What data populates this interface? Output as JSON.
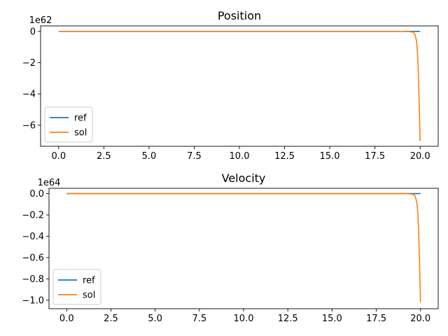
{
  "chart_data": [
    {
      "type": "line",
      "title": "Position",
      "xlabel": "",
      "ylabel": "",
      "y_offset_label": "1e62",
      "xlim": [
        -1.0,
        21.0
      ],
      "ylim": [
        -7.35,
        0.35
      ],
      "x_ticks": [
        0,
        2.5,
        5,
        7.5,
        10,
        12.5,
        15,
        17.5,
        20
      ],
      "x_tick_labels": [
        "0.0",
        "2.5",
        "5.0",
        "7.5",
        "10.0",
        "12.5",
        "15.0",
        "17.5",
        "20.0"
      ],
      "y_ticks": [
        0,
        -2,
        -4,
        -6
      ],
      "y_tick_labels": [
        "0",
        "−2",
        "−4",
        "−6"
      ],
      "grid": false,
      "legend": "lower-left",
      "series": [
        {
          "name": "ref",
          "color": "#1f77b4",
          "x": [
            0,
            20
          ],
          "y": [
            0,
            0
          ]
        },
        {
          "name": "sol",
          "color": "#ff7f0e",
          "x": [
            0,
            19.0,
            19.4,
            19.6,
            19.7,
            19.8,
            19.85,
            19.9,
            19.95,
            20.0
          ],
          "y": [
            0,
            0,
            -0.01,
            -0.05,
            -0.15,
            -0.6,
            -1.3,
            -2.6,
            -4.6,
            -7.0
          ]
        }
      ]
    },
    {
      "type": "line",
      "title": "Velocity",
      "xlabel": "",
      "ylabel": "",
      "y_offset_label": "1e64",
      "xlim": [
        -1.0,
        21.0
      ],
      "ylim": [
        -1.08,
        0.05
      ],
      "x_ticks": [
        0,
        2.5,
        5,
        7.5,
        10,
        12.5,
        15,
        17.5,
        20
      ],
      "x_tick_labels": [
        "0.0",
        "2.5",
        "5.0",
        "7.5",
        "10.0",
        "12.5",
        "15.0",
        "17.5",
        "20.0"
      ],
      "y_ticks": [
        0,
        -0.2,
        -0.4,
        -0.6,
        -0.8,
        -1.0
      ],
      "y_tick_labels": [
        "0.0",
        "−0.2",
        "−0.4",
        "−0.6",
        "−0.8",
        "−1.0"
      ],
      "grid": false,
      "legend": "lower-left",
      "series": [
        {
          "name": "ref",
          "color": "#1f77b4",
          "x": [
            0,
            20
          ],
          "y": [
            0,
            0
          ]
        },
        {
          "name": "sol",
          "color": "#ff7f0e",
          "x": [
            0,
            19.0,
            19.4,
            19.6,
            19.7,
            19.8,
            19.85,
            19.9,
            19.95,
            20.0
          ],
          "y": [
            0,
            0,
            -0.002,
            -0.008,
            -0.022,
            -0.09,
            -0.19,
            -0.38,
            -0.68,
            -1.02
          ]
        }
      ]
    }
  ]
}
